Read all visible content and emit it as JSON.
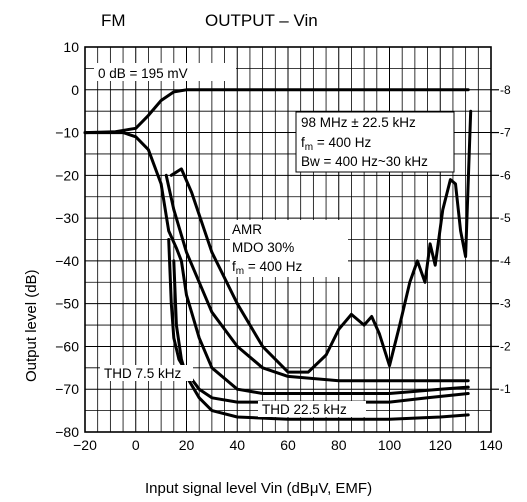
{
  "chart_data": {
    "type": "line",
    "title_left": "FM",
    "title": "OUTPUT – Vin",
    "xlabel": "Input signal level   Vin   (dBμV, EMF)",
    "ylabel": "Output level     (dB)",
    "xlim": [
      -20,
      140
    ],
    "ylim": [
      -80,
      10
    ],
    "grid": true,
    "xticks": [
      "−20",
      "0",
      "20",
      "40",
      "60",
      "80",
      "100",
      "120",
      "140"
    ],
    "yticks": [
      "10",
      "0",
      "−10",
      "−20",
      "−30",
      "−40",
      "−50",
      "−60",
      "−70",
      "−80"
    ],
    "right_ticks": [
      "-8",
      "-7",
      "-6",
      "-5",
      "-4",
      "-3",
      "-2",
      "-1"
    ],
    "annotations": {
      "ref": "0 dB = 195 mV",
      "cond1": "98 MHz ± 22.5 kHz",
      "cond2_base": "f",
      "cond2_sub": "m",
      "cond2_rest": " = 400 Hz",
      "cond3": "Bw = 400 Hz~30 kHz",
      "amr1": "AMR",
      "amr2": "MDO 30%",
      "amr3_base": "f",
      "amr3_sub": "m",
      "amr3_rest": " = 400 Hz",
      "thd1": "THD 7.5 kHz",
      "thd2": "THD 22.5 kHz"
    },
    "series": [
      {
        "points": [
          [
            -20,
            -10
          ],
          [
            -8,
            -9.8
          ],
          [
            0,
            -9
          ],
          [
            5,
            -6
          ],
          [
            10,
            -2.5
          ],
          [
            15,
            -0.5
          ],
          [
            20,
            0
          ],
          [
            40,
            0
          ],
          [
            60,
            0
          ],
          [
            80,
            0
          ],
          [
            100,
            0
          ],
          [
            120,
            0
          ],
          [
            131,
            0
          ]
        ]
      },
      {
        "points": [
          [
            -20,
            -10
          ],
          [
            -5,
            -10
          ],
          [
            0,
            -11
          ],
          [
            5,
            -14
          ],
          [
            10,
            -22
          ],
          [
            13,
            -33
          ],
          [
            16,
            -37
          ],
          [
            18,
            -40
          ],
          [
            20,
            -48
          ],
          [
            25,
            -58
          ],
          [
            30,
            -65
          ],
          [
            40,
            -70
          ],
          [
            50,
            -71
          ],
          [
            60,
            -71
          ],
          [
            80,
            -71
          ],
          [
            100,
            -71
          ],
          [
            120,
            -70
          ],
          [
            131,
            -69.5
          ]
        ]
      },
      {
        "points": [
          [
            14,
            -20
          ],
          [
            18,
            -18.5
          ],
          [
            22,
            -24
          ],
          [
            30,
            -38
          ],
          [
            40,
            -50
          ],
          [
            50,
            -60
          ],
          [
            60,
            -66
          ],
          [
            68,
            -66
          ],
          [
            75,
            -62
          ],
          [
            80,
            -56
          ],
          [
            85,
            -52.5
          ],
          [
            90,
            -55
          ],
          [
            93,
            -53
          ],
          [
            96,
            -57
          ],
          [
            100,
            -64.5
          ],
          [
            104,
            -55
          ],
          [
            108,
            -45
          ],
          [
            111,
            -40
          ],
          [
            114,
            -45
          ],
          [
            116,
            -36
          ],
          [
            118,
            -41
          ],
          [
            121,
            -28
          ],
          [
            124,
            -21
          ],
          [
            126,
            -22
          ],
          [
            128,
            -33
          ],
          [
            130,
            -39
          ],
          [
            132,
            -5
          ]
        ]
      },
      {
        "points": [
          [
            12,
            -20
          ],
          [
            15,
            -28
          ],
          [
            20,
            -38
          ],
          [
            30,
            -52
          ],
          [
            40,
            -60
          ],
          [
            50,
            -65
          ],
          [
            60,
            -67
          ],
          [
            80,
            -68
          ],
          [
            100,
            -68
          ],
          [
            131,
            -68
          ]
        ]
      },
      {
        "points": [
          [
            13,
            -35
          ],
          [
            14,
            -50
          ],
          [
            15,
            -58
          ],
          [
            17,
            -63
          ],
          [
            20,
            -66
          ],
          [
            25,
            -70
          ],
          [
            30,
            -72
          ],
          [
            40,
            -73
          ],
          [
            60,
            -73
          ],
          [
            100,
            -73
          ],
          [
            115,
            -72
          ],
          [
            131,
            -71
          ]
        ]
      },
      {
        "points": [
          [
            15,
            -40
          ],
          [
            16,
            -55
          ],
          [
            18,
            -63
          ],
          [
            20,
            -67
          ],
          [
            25,
            -72
          ],
          [
            30,
            -75
          ],
          [
            40,
            -76.5
          ],
          [
            60,
            -77
          ],
          [
            80,
            -77
          ],
          [
            100,
            -77
          ],
          [
            120,
            -76.5
          ],
          [
            131,
            -76
          ]
        ]
      }
    ]
  }
}
